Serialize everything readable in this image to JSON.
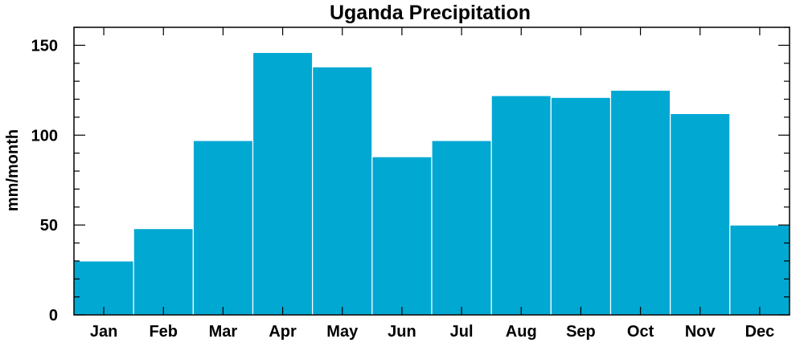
{
  "chart_data": {
    "type": "bar",
    "title": "Uganda Precipitation",
    "xlabel": "",
    "ylabel": "mm/month",
    "categories": [
      "Jan",
      "Feb",
      "Mar",
      "Apr",
      "May",
      "Jun",
      "Jul",
      "Aug",
      "Sep",
      "Oct",
      "Nov",
      "Dec"
    ],
    "values": [
      30,
      48,
      97,
      146,
      138,
      88,
      97,
      122,
      121,
      125,
      112,
      50
    ],
    "ylim": [
      0,
      160
    ],
    "yticks": [
      0,
      50,
      100,
      150
    ],
    "yminor_step": 10,
    "bar_color": "#00a8d2",
    "bar_edge_color": "#ffffff",
    "grid": false,
    "legend": "none"
  }
}
